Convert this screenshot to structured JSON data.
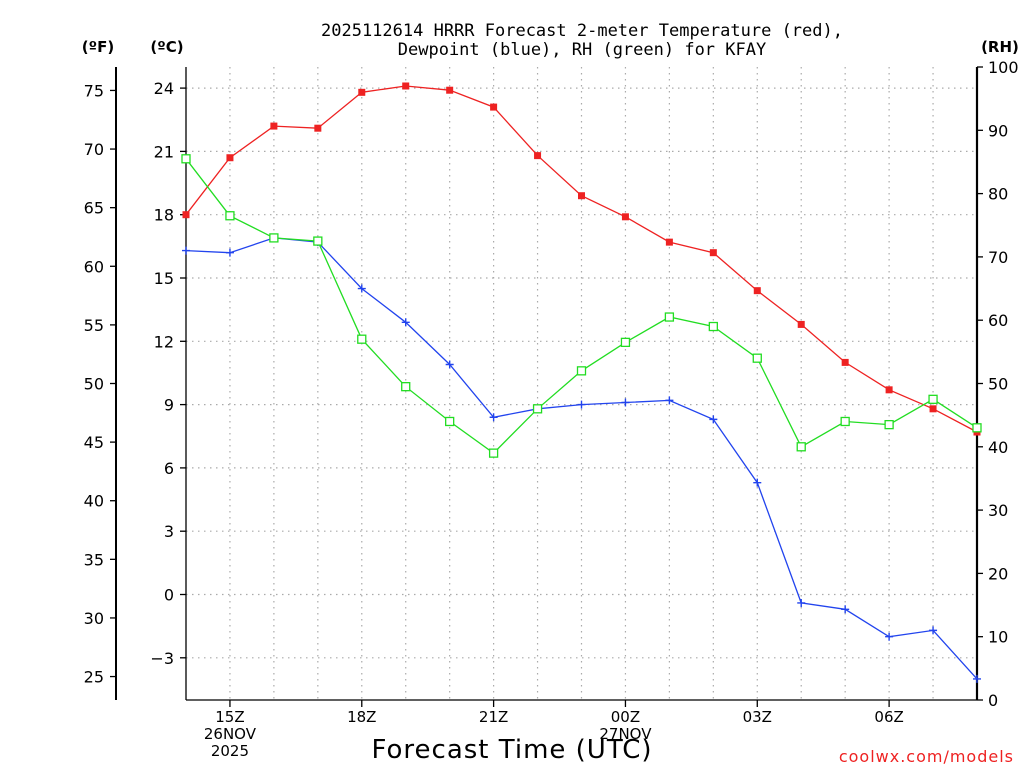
{
  "chart_data": {
    "type": "line",
    "title_line1": "2025112614 HRRR Forecast 2-meter Temperature (red),",
    "title_line2": "Dewpoint (blue), RH (green) for KFAY",
    "xlabel": "Forecast Time (UTC)",
    "left_outer_axis_label": "(ºF)",
    "left_inner_axis_label": "(ºC)",
    "right_axis_label": "(RH)",
    "credit": "coolwx.com/models",
    "x_hours": [
      14,
      15,
      16,
      17,
      18,
      19,
      20,
      21,
      22,
      23,
      24,
      25,
      26,
      27,
      28,
      29,
      30,
      31,
      32
    ],
    "xlim": [
      14,
      32
    ],
    "x_ticks": [
      {
        "hour": 15,
        "lines": [
          "15Z",
          "26NOV",
          "2025"
        ]
      },
      {
        "hour": 18,
        "lines": [
          "18Z"
        ]
      },
      {
        "hour": 21,
        "lines": [
          "21Z"
        ]
      },
      {
        "hour": 24,
        "lines": [
          "00Z",
          "27NOV"
        ]
      },
      {
        "hour": 27,
        "lines": [
          "03Z"
        ]
      },
      {
        "hour": 30,
        "lines": [
          "06Z"
        ]
      }
    ],
    "celsius_ticks": [
      24,
      21,
      18,
      15,
      12,
      9,
      6,
      3,
      0,
      -3
    ],
    "celsius_tick_labels": [
      "24",
      "21",
      "18",
      "15",
      "12",
      "9",
      "6",
      "3",
      "0",
      "−3"
    ],
    "ylim_celsius": [
      -5,
      25
    ],
    "fahrenheit_ticks": [
      75,
      70,
      65,
      60,
      55,
      50,
      45,
      40,
      35,
      30,
      25
    ],
    "rh_ticks": [
      100,
      90,
      80,
      70,
      60,
      50,
      40,
      30,
      20,
      10,
      0
    ],
    "ylim_rh": [
      0,
      100
    ],
    "series": [
      {
        "name": "Temperature",
        "color": "#ee2222",
        "marker": "filled-square",
        "axis": "celsius",
        "values": [
          18.0,
          20.7,
          22.2,
          22.1,
          23.8,
          24.1,
          23.9,
          23.1,
          20.8,
          18.9,
          17.9,
          16.7,
          16.2,
          14.4,
          12.8,
          11.0,
          9.7,
          8.8,
          7.7
        ]
      },
      {
        "name": "Dewpoint",
        "color": "#2244ee",
        "marker": "plus",
        "axis": "celsius",
        "values": [
          16.3,
          16.2,
          16.9,
          16.7,
          14.5,
          12.9,
          10.9,
          8.4,
          8.8,
          9.0,
          9.1,
          9.2,
          8.3,
          5.3,
          -0.4,
          -0.7,
          -2.0,
          -1.7,
          -4.0
        ]
      },
      {
        "name": "RH",
        "color": "#22dd22",
        "marker": "open-square",
        "axis": "rh",
        "values": [
          85.5,
          76.5,
          73.0,
          72.5,
          57.0,
          49.5,
          44.0,
          39.0,
          46.0,
          52.0,
          56.5,
          60.5,
          59.0,
          54.0,
          40.0,
          44.0,
          43.5,
          47.5,
          43.0
        ]
      }
    ]
  }
}
